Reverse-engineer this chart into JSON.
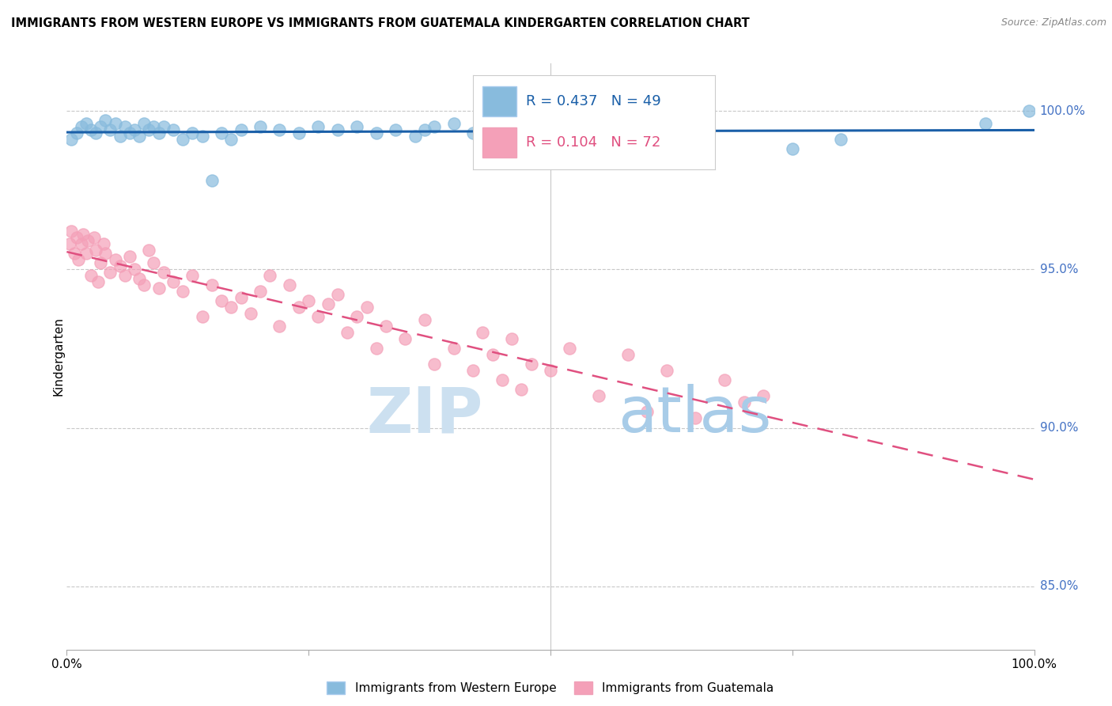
{
  "title": "IMMIGRANTS FROM WESTERN EUROPE VS IMMIGRANTS FROM GUATEMALA KINDERGARTEN CORRELATION CHART",
  "source": "Source: ZipAtlas.com",
  "ylabel": "Kindergarten",
  "y_ticks": [
    85.0,
    90.0,
    95.0,
    100.0
  ],
  "y_tick_labels": [
    "85.0%",
    "90.0%",
    "95.0%",
    "100.0%"
  ],
  "legend_label_blue": "Immigrants from Western Europe",
  "legend_label_pink": "Immigrants from Guatemala",
  "R_blue": 0.437,
  "N_blue": 49,
  "R_pink": 0.104,
  "N_pink": 72,
  "blue_color": "#88bbdd",
  "pink_color": "#f4a0b8",
  "blue_line_color": "#1a5fa8",
  "pink_line_color": "#e05080",
  "xlim": [
    0,
    100
  ],
  "ylim": [
    83,
    101.5
  ],
  "blue_x": [
    0.5,
    1.0,
    1.5,
    2.0,
    2.5,
    3.0,
    3.5,
    4.0,
    4.5,
    5.0,
    5.5,
    6.0,
    6.5,
    7.0,
    7.5,
    8.0,
    8.5,
    9.0,
    9.5,
    10.0,
    11.0,
    12.0,
    13.0,
    14.0,
    15.0,
    16.0,
    17.0,
    18.0,
    20.0,
    22.0,
    24.0,
    26.0,
    28.0,
    30.0,
    32.0,
    34.0,
    36.0,
    37.0,
    38.0,
    40.0,
    42.0,
    50.0,
    55.0,
    60.0,
    65.0,
    75.0,
    80.0,
    95.0,
    99.5
  ],
  "blue_y": [
    99.1,
    99.3,
    99.5,
    99.6,
    99.4,
    99.3,
    99.5,
    99.7,
    99.4,
    99.6,
    99.2,
    99.5,
    99.3,
    99.4,
    99.2,
    99.6,
    99.4,
    99.5,
    99.3,
    99.5,
    99.4,
    99.1,
    99.3,
    99.2,
    97.8,
    99.3,
    99.1,
    99.4,
    99.5,
    99.4,
    99.3,
    99.5,
    99.4,
    99.5,
    99.3,
    99.4,
    99.2,
    99.4,
    99.5,
    99.6,
    99.3,
    99.4,
    99.5,
    99.3,
    99.1,
    98.8,
    99.1,
    99.6,
    100.0
  ],
  "pink_x": [
    0.3,
    0.5,
    0.8,
    1.0,
    1.2,
    1.5,
    1.7,
    2.0,
    2.2,
    2.5,
    2.8,
    3.0,
    3.2,
    3.5,
    3.8,
    4.0,
    4.5,
    5.0,
    5.5,
    6.0,
    6.5,
    7.0,
    7.5,
    8.0,
    8.5,
    9.0,
    9.5,
    10.0,
    11.0,
    12.0,
    13.0,
    14.0,
    15.0,
    16.0,
    17.0,
    18.0,
    19.0,
    20.0,
    21.0,
    22.0,
    23.0,
    24.0,
    25.0,
    26.0,
    27.0,
    28.0,
    29.0,
    30.0,
    31.0,
    32.0,
    33.0,
    35.0,
    37.0,
    38.0,
    40.0,
    42.0,
    43.0,
    44.0,
    45.0,
    46.0,
    47.0,
    48.0,
    50.0,
    52.0,
    55.0,
    58.0,
    60.0,
    62.0,
    65.0,
    68.0,
    70.0,
    72.0
  ],
  "pink_y": [
    95.8,
    96.2,
    95.5,
    96.0,
    95.3,
    95.8,
    96.1,
    95.5,
    95.9,
    94.8,
    96.0,
    95.6,
    94.6,
    95.2,
    95.8,
    95.5,
    94.9,
    95.3,
    95.1,
    94.8,
    95.4,
    95.0,
    94.7,
    94.5,
    95.6,
    95.2,
    94.4,
    94.9,
    94.6,
    94.3,
    94.8,
    93.5,
    94.5,
    94.0,
    93.8,
    94.1,
    93.6,
    94.3,
    94.8,
    93.2,
    94.5,
    93.8,
    94.0,
    93.5,
    93.9,
    94.2,
    93.0,
    93.5,
    93.8,
    92.5,
    93.2,
    92.8,
    93.4,
    92.0,
    92.5,
    91.8,
    93.0,
    92.3,
    91.5,
    92.8,
    91.2,
    92.0,
    91.8,
    92.5,
    91.0,
    92.3,
    90.5,
    91.8,
    90.3,
    91.5,
    90.8,
    91.0
  ]
}
